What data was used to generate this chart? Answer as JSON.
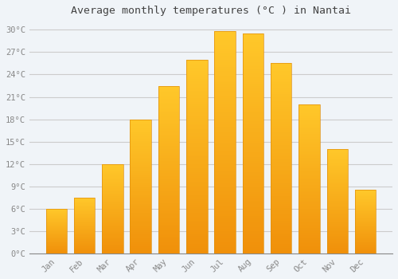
{
  "title": "Average monthly temperatures (°C ) in Nantai",
  "months": [
    "Jan",
    "Feb",
    "Mar",
    "Apr",
    "May",
    "Jun",
    "Jul",
    "Aug",
    "Sep",
    "Oct",
    "Nov",
    "Dec"
  ],
  "values": [
    6.0,
    7.5,
    12.0,
    18.0,
    22.5,
    26.0,
    29.8,
    29.5,
    25.5,
    20.0,
    14.0,
    8.5
  ],
  "bar_color_top": "#FFC82A",
  "bar_color_bottom": "#F0900A",
  "bar_edge_color": "#E09010",
  "background_color": "#F0F4F8",
  "grid_color": "#CCCCCC",
  "tick_label_color": "#888888",
  "title_color": "#444444",
  "ylim": [
    0,
    31
  ],
  "yticks": [
    0,
    3,
    6,
    9,
    12,
    15,
    18,
    21,
    24,
    27,
    30
  ],
  "ylabel_suffix": "°C"
}
